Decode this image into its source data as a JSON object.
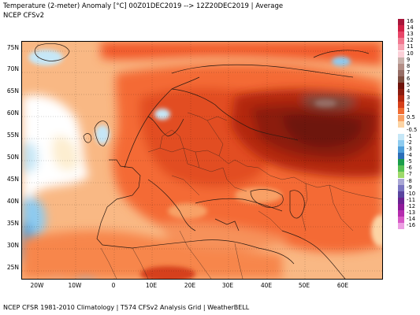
{
  "header": {
    "title": "Temperature (2-meter) Anomaly  [°C] 00Z01DEC2019 --> 12Z20DEC2019 | Average",
    "subtitle": "NCEP CFSv2"
  },
  "footer": {
    "credit": "NCEP CFSR 1981-2010 Climatology | T574 CFSv2 Analysis Grid | WeatherBELL"
  },
  "map": {
    "lat_labels": [
      "75N",
      "70N",
      "65N",
      "60N",
      "55N",
      "50N",
      "45N",
      "40N",
      "35N",
      "30N",
      "25N"
    ],
    "lon_labels": [
      "20W",
      "10W",
      "0",
      "10E",
      "20E",
      "30E",
      "40E",
      "50E",
      "60E"
    ],
    "lat_range": [
      23,
      77
    ],
    "lon_range": [
      -27,
      70
    ],
    "colors": {
      "ocean": "#fbc898",
      "land": "#f46a34",
      "warm_core": "#8e1a0e",
      "cool": "#8ec8ef",
      "neutral": "#ffffff",
      "borders": "#2a1a12"
    }
  },
  "legend": {
    "labels": [
      "16",
      "14",
      "13",
      "12",
      "11",
      "10",
      "9",
      "8",
      "7",
      "6",
      "5",
      "4",
      "3",
      "2",
      "1",
      "0.5",
      "0",
      "-0.5",
      "-1",
      "-2",
      "-3",
      "-4",
      "-5",
      "-6",
      "-7",
      "-8",
      "-9",
      "-10",
      "-11",
      "-12",
      "-13",
      "-14",
      "-16"
    ],
    "colors": [
      "#a8163a",
      "#d02045",
      "#e84668",
      "#f27a91",
      "#f7a5b4",
      "#fbd0d8",
      "#c9b1ab",
      "#b28e86",
      "#976e66",
      "#7b4d3f",
      "#6e120a",
      "#8c1b0e",
      "#b3270f",
      "#d6401a",
      "#f06c33",
      "#f8a166",
      "#fcd4a5",
      "#ffffff",
      "#c6e7f7",
      "#8ecbef",
      "#4f9ed9",
      "#2b6fb8",
      "#1b9d4a",
      "#56c052",
      "#9ed96b",
      "#a9a6d4",
      "#7a74c0",
      "#5a449f",
      "#6b2191",
      "#8e1a9a",
      "#b52cae",
      "#d657c5",
      "#ec9ee2"
    ]
  }
}
